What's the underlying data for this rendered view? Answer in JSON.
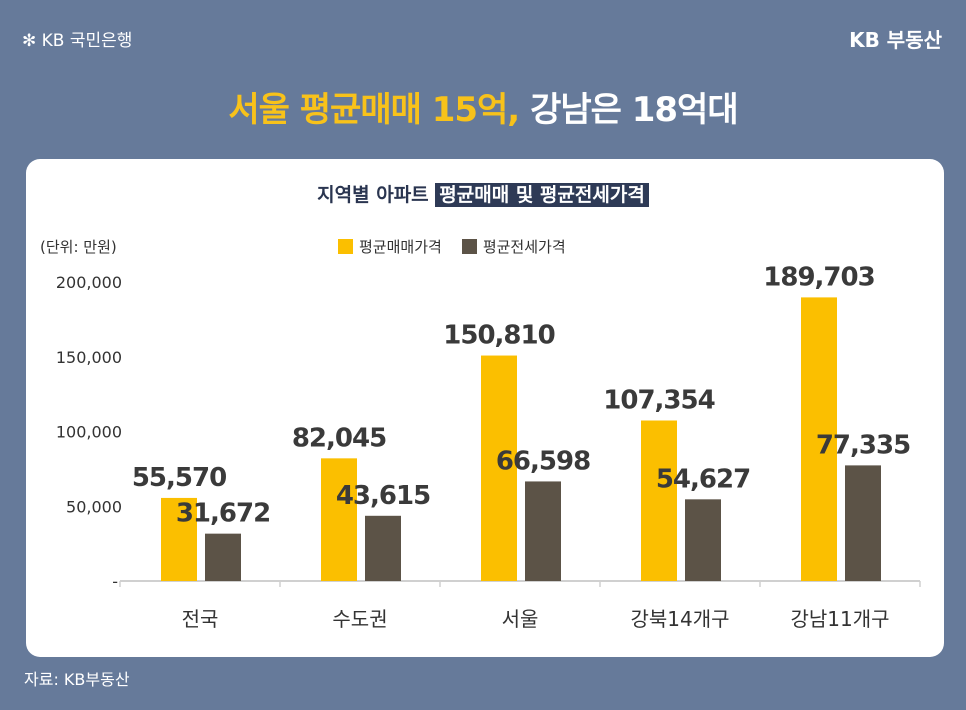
{
  "header": {
    "logo_text": "KB 국민은행",
    "brand": "KB 부동산",
    "headline_highlight": "서울 평균매매 15억,",
    "headline_rest": " 강남은 18억대"
  },
  "source": "자료: KB부동산",
  "colors": {
    "sale": "#fbbf00",
    "jeonse": "#5c5347",
    "background": "#667a9a"
  },
  "chart_data": {
    "type": "bar",
    "title_plain": "지역별 아파트 ",
    "title_highlight": "평균매매 및 평균전세가격",
    "unit_label": "(단위: 만원)",
    "categories": [
      "전국",
      "수도권",
      "서울",
      "강북14개구",
      "강남11개구"
    ],
    "series": [
      {
        "name": "평균매매가격",
        "values": [
          55570,
          82045,
          150810,
          107354,
          189703
        ]
      },
      {
        "name": "평균전세가격",
        "values": [
          31672,
          43615,
          66598,
          54627,
          77335
        ]
      }
    ],
    "data_labels": [
      [
        "55,570",
        "82,045",
        "150,810",
        "107,354",
        "189,703"
      ],
      [
        "31,672",
        "43,615",
        "66,598",
        "54,627",
        "77,335"
      ]
    ],
    "yticks": [
      "-",
      "50,000",
      "100,000",
      "150,000",
      "200,000"
    ],
    "ylim": [
      0,
      200000
    ],
    "legend": "top-center",
    "grid": false
  }
}
